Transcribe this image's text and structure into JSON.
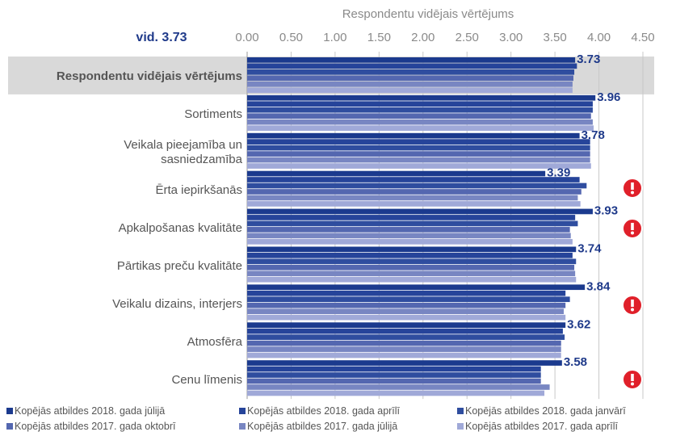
{
  "chart_data": {
    "type": "barh",
    "xlabel": "Respondentu vidējais vērtējums",
    "annotation": "vid. 3.73",
    "categories": [
      "Respondentu vidējais vērtējums",
      "Sortiments",
      "Veikala pieejamība un sasniedzamība",
      "Ērta iepirkšanās",
      "Apkalpošanas kvalitāte",
      "Pārtikas preču kvalitāte",
      "Veikalu dizains, interjers",
      "Atmosfēra",
      "Cenu līmenis"
    ],
    "series": [
      {
        "name": "Kopējās atbildes 2018. gada jūlijā",
        "color": "#1b3a8e",
        "values": [
          3.73,
          3.96,
          3.78,
          3.39,
          3.93,
          3.74,
          3.84,
          3.62,
          3.58
        ]
      },
      {
        "name": "Kopējās atbildes 2018. gada aprīlī",
        "color": "#26449a",
        "values": [
          3.75,
          3.93,
          3.9,
          3.78,
          3.73,
          3.7,
          3.62,
          3.59,
          3.34
        ]
      },
      {
        "name": "Kopējās atbildes 2018. gada janvārī",
        "color": "#2f4d9f",
        "values": [
          3.72,
          3.93,
          3.9,
          3.86,
          3.76,
          3.74,
          3.67,
          3.61,
          3.34
        ]
      },
      {
        "name": "Kopējās atbildes 2017. gada oktobrī",
        "color": "#5467b0",
        "values": [
          3.71,
          3.91,
          3.9,
          3.8,
          3.67,
          3.72,
          3.62,
          3.57,
          3.34
        ]
      },
      {
        "name": "Kopējās atbildes 2017. gada jūlijā",
        "color": "#7886c2",
        "values": [
          3.7,
          3.93,
          3.9,
          3.76,
          3.68,
          3.73,
          3.6,
          3.57,
          3.44
        ]
      },
      {
        "name": "Kopējās atbildes 2017. gada aprīlī",
        "color": "#a0a9d8",
        "values": [
          3.7,
          3.94,
          3.91,
          3.79,
          3.7,
          3.74,
          3.62,
          3.57,
          3.38
        ]
      }
    ],
    "xlim": [
      0,
      4.5
    ],
    "xticks": [
      {
        "value": 0,
        "label": "0.00"
      },
      {
        "value": 0.5,
        "label": "0.50"
      },
      {
        "value": 1,
        "label": "1.00"
      },
      {
        "value": 1.5,
        "label": "1.50"
      },
      {
        "value": 2,
        "label": "2.00"
      },
      {
        "value": 2.5,
        "label": "2.50"
      },
      {
        "value": 3,
        "label": "3.00"
      },
      {
        "value": 3.5,
        "label": "3.50"
      },
      {
        "value": 4,
        "label": "4.00"
      },
      {
        "value": 4.5,
        "label": "4.50"
      }
    ],
    "grid": true,
    "highlight_color": "#d9d9d9",
    "label_color": "#1f3a8a"
  }
}
